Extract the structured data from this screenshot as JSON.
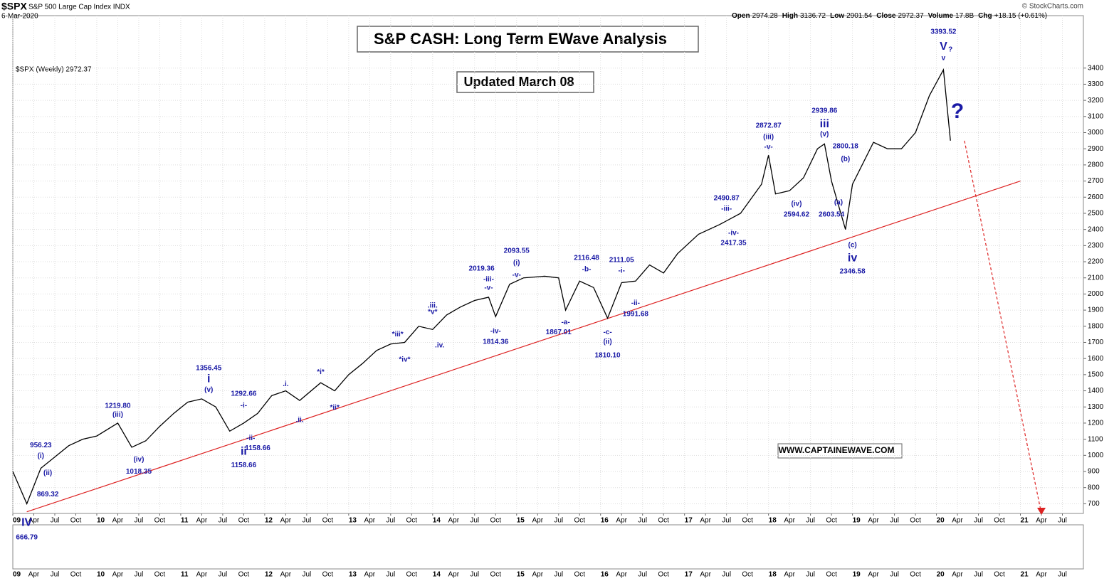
{
  "chart_data": {
    "type": "line",
    "symbol": "$SPX",
    "subtitle": "S&P 500 Large Cap Index INDX",
    "date": "6-Mar-2020",
    "quote": [
      {
        "label": "Open",
        "value": "2974.28"
      },
      {
        "label": "High",
        "value": "3136.72"
      },
      {
        "label": "Low",
        "value": "2901.54"
      },
      {
        "label": "Close",
        "value": "2972.37"
      },
      {
        "label": "Volume",
        "value": "17.8B"
      },
      {
        "label": "Chg",
        "value": "+18.15 (+0.61%)"
      }
    ],
    "credit": "© StockCharts.com",
    "title": "S&P CASH: Long Term EWave Analysis",
    "update_note": "Updated March 08",
    "website": "WWW.CAPTAINEWAVE.COM",
    "x": [
      "2009-01",
      "2009-03",
      "2009-05",
      "2009-07",
      "2009-09",
      "2009-11",
      "2010-01",
      "2010-04",
      "2010-06",
      "2010-08",
      "2010-10",
      "2010-12",
      "2011-02",
      "2011-04",
      "2011-06",
      "2011-08",
      "2011-10",
      "2011-12",
      "2012-02",
      "2012-04",
      "2012-06",
      "2012-09",
      "2012-11",
      "2013-01",
      "2013-03",
      "2013-05",
      "2013-07",
      "2013-09",
      "2013-11",
      "2014-01",
      "2014-03",
      "2014-05",
      "2014-07",
      "2014-09",
      "2014-10",
      "2014-12",
      "2015-02",
      "2015-05",
      "2015-07",
      "2015-08",
      "2015-10",
      "2015-12",
      "2016-02",
      "2016-04",
      "2016-06",
      "2016-08",
      "2016-10",
      "2016-12",
      "2017-03",
      "2017-06",
      "2017-09",
      "2017-12",
      "2018-01",
      "2018-02",
      "2018-04",
      "2018-06",
      "2018-08",
      "2018-09",
      "2018-10",
      "2018-12",
      "2019-01",
      "2019-04",
      "2019-06",
      "2019-08",
      "2019-10",
      "2019-12",
      "2020-02",
      "2020-03"
    ],
    "series": [
      {
        "name": "$SPX (Weekly) 2972.37",
        "color": "#000000",
        "values": [
          900,
          700,
          920,
          990,
          1060,
          1100,
          1120,
          1200,
          1050,
          1090,
          1180,
          1260,
          1330,
          1350,
          1300,
          1150,
          1200,
          1260,
          1370,
          1400,
          1340,
          1450,
          1400,
          1500,
          1570,
          1650,
          1690,
          1700,
          1800,
          1780,
          1870,
          1920,
          1960,
          1980,
          1860,
          2060,
          2100,
          2110,
          2100,
          1900,
          2080,
          2040,
          1850,
          2070,
          2080,
          2180,
          2130,
          2250,
          2370,
          2430,
          2500,
          2680,
          2860,
          2620,
          2640,
          2720,
          2900,
          2930,
          2700,
          2400,
          2680,
          2940,
          2900,
          2900,
          3000,
          3230,
          3390,
          2950
        ]
      }
    ],
    "xlim": [
      "2009-01",
      "2021-10"
    ],
    "xticks": [
      {
        "value": "2009-01",
        "label": "09"
      },
      {
        "value": "2009-04",
        "label": "Apr"
      },
      {
        "value": "2009-07",
        "label": "Jul"
      },
      {
        "value": "2009-10",
        "label": "Oct"
      },
      {
        "value": "2010-01",
        "label": "10"
      },
      {
        "value": "2010-04",
        "label": "Apr"
      },
      {
        "value": "2010-07",
        "label": "Jul"
      },
      {
        "value": "2010-10",
        "label": "Oct"
      },
      {
        "value": "2011-01",
        "label": "11"
      },
      {
        "value": "2011-04",
        "label": "Apr"
      },
      {
        "value": "2011-07",
        "label": "Jul"
      },
      {
        "value": "2011-10",
        "label": "Oct"
      },
      {
        "value": "2012-01",
        "label": "12"
      },
      {
        "value": "2012-04",
        "label": "Apr"
      },
      {
        "value": "2012-07",
        "label": "Jul"
      },
      {
        "value": "2012-10",
        "label": "Oct"
      },
      {
        "value": "2013-01",
        "label": "13"
      },
      {
        "value": "2013-04",
        "label": "Apr"
      },
      {
        "value": "2013-07",
        "label": "Jul"
      },
      {
        "value": "2013-10",
        "label": "Oct"
      },
      {
        "value": "2014-01",
        "label": "14"
      },
      {
        "value": "2014-04",
        "label": "Apr"
      },
      {
        "value": "2014-07",
        "label": "Jul"
      },
      {
        "value": "2014-10",
        "label": "Oct"
      },
      {
        "value": "2015-01",
        "label": "15"
      },
      {
        "value": "2015-04",
        "label": "Apr"
      },
      {
        "value": "2015-07",
        "label": "Jul"
      },
      {
        "value": "2015-10",
        "label": "Oct"
      },
      {
        "value": "2016-01",
        "label": "16"
      },
      {
        "value": "2016-04",
        "label": "Apr"
      },
      {
        "value": "2016-07",
        "label": "Jul"
      },
      {
        "value": "2016-10",
        "label": "Oct"
      },
      {
        "value": "2017-01",
        "label": "17"
      },
      {
        "value": "2017-04",
        "label": "Apr"
      },
      {
        "value": "2017-07",
        "label": "Jul"
      },
      {
        "value": "2017-10",
        "label": "Oct"
      },
      {
        "value": "2018-01",
        "label": "18"
      },
      {
        "value": "2018-04",
        "label": "Apr"
      },
      {
        "value": "2018-07",
        "label": "Jul"
      },
      {
        "value": "2018-10",
        "label": "Oct"
      },
      {
        "value": "2019-01",
        "label": "19"
      },
      {
        "value": "2019-04",
        "label": "Apr"
      },
      {
        "value": "2019-07",
        "label": "Jul"
      },
      {
        "value": "2019-10",
        "label": "Oct"
      },
      {
        "value": "2020-01",
        "label": "20"
      },
      {
        "value": "2020-04",
        "label": "Apr"
      },
      {
        "value": "2020-07",
        "label": "Jul"
      },
      {
        "value": "2020-10",
        "label": "Oct"
      },
      {
        "value": "2021-01",
        "label": "21"
      },
      {
        "value": "2021-04",
        "label": "Apr"
      },
      {
        "value": "2021-07",
        "label": "Jul"
      }
    ],
    "ylim": [
      640,
      3725
    ],
    "yticks": [
      700,
      800,
      900,
      1000,
      1100,
      1200,
      1300,
      1400,
      1500,
      1600,
      1700,
      1800,
      1900,
      2000,
      2100,
      2200,
      2300,
      2400,
      2500,
      2600,
      2700,
      2800,
      2900,
      3000,
      3100,
      3200,
      3300,
      3400
    ],
    "grid": true,
    "lines": [
      {
        "from": [
          "2009-03",
          650
        ],
        "to": [
          "2021-01",
          2700
        ],
        "color": "#dd2222",
        "style": "solid"
      },
      {
        "from": [
          "2020-05",
          2950
        ],
        "to": [
          "2021-04",
          640
        ],
        "color": "#dd2222",
        "style": "dashed"
      }
    ],
    "annotations": [
      {
        "text": "956.23",
        "x": "2009-05",
        "y": 1062
      },
      {
        "text": "(i)",
        "x": "2009-05",
        "y": 996
      },
      {
        "text": "(ii)",
        "x": "2009-06",
        "y": 890
      },
      {
        "text": "869.32",
        "x": "2009-06",
        "y": 758
      },
      {
        "text": "1219.80",
        "x": "2010-04",
        "y": 1305
      },
      {
        "text": "(iii)",
        "x": "2010-04",
        "y": 1252
      },
      {
        "text": "(iv)",
        "x": "2010-07",
        "y": 974
      },
      {
        "text": "1018.35",
        "x": "2010-07",
        "y": 899
      },
      {
        "text": "1356.45",
        "x": "2011-05",
        "y": 1539
      },
      {
        "text": "i",
        "x": "2011-05",
        "y": 1472,
        "size": "big"
      },
      {
        "text": "(v)",
        "x": "2011-05",
        "y": 1406
      },
      {
        "text": "1292.66",
        "x": "2011-10",
        "y": 1380
      },
      {
        "text": "-i-",
        "x": "2011-10",
        "y": 1309
      },
      {
        "text": "-ii-",
        "x": "2011-11",
        "y": 1106
      },
      {
        "text": "1158.66",
        "x": "2011-12",
        "y": 1044
      },
      {
        "text": "ii",
        "x": "2011-10",
        "y": 1022,
        "size": "big"
      },
      {
        "text": "1158.66",
        "x": "2011-10",
        "y": 939
      },
      {
        "text": ".i.",
        "x": "2012-04",
        "y": 1441
      },
      {
        "text": ".ii.",
        "x": "2012-06",
        "y": 1217
      },
      {
        "text": "*i*",
        "x": "2012-09",
        "y": 1516
      },
      {
        "text": "*ii*",
        "x": "2012-11",
        "y": 1296
      },
      {
        "text": "*iii*",
        "x": "2013-08",
        "y": 1750
      },
      {
        "text": "*iv*",
        "x": "2013-09",
        "y": 1592
      },
      {
        "text": ".iii.",
        "x": "2014-01",
        "y": 1927
      },
      {
        "text": "*v*",
        "x": "2014-01",
        "y": 1887
      },
      {
        "text": ".iv.",
        "x": "2014-02",
        "y": 1680
      },
      {
        "text": "2019.36",
        "x": "2014-08",
        "y": 2156
      },
      {
        "text": "-iii-",
        "x": "2014-09",
        "y": 2090
      },
      {
        "text": "-v-",
        "x": "2014-09",
        "y": 2037
      },
      {
        "text": "-iv-",
        "x": "2014-10",
        "y": 1768
      },
      {
        "text": "1814.36",
        "x": "2014-10",
        "y": 1702
      },
      {
        "text": "2093.55",
        "x": "2015-01",
        "y": 2266
      },
      {
        "text": "(i)",
        "x": "2015-01",
        "y": 2191
      },
      {
        "text": "-v-",
        "x": "2015-01",
        "y": 2116
      },
      {
        "text": "2116.48",
        "x": "2015-11",
        "y": 2222
      },
      {
        "text": "-b-",
        "x": "2015-11",
        "y": 2152
      },
      {
        "text": "-a-",
        "x": "2015-08",
        "y": 1825
      },
      {
        "text": "1867.01",
        "x": "2015-07",
        "y": 1763
      },
      {
        "text": "-c-",
        "x": "2016-02",
        "y": 1763
      },
      {
        "text": "(ii)",
        "x": "2016-02",
        "y": 1702
      },
      {
        "text": "1810.10",
        "x": "2016-02",
        "y": 1618
      },
      {
        "text": "2111.05",
        "x": "2016-04",
        "y": 2209
      },
      {
        "text": "-i-",
        "x": "2016-04",
        "y": 2143
      },
      {
        "text": "-ii-",
        "x": "2016-06",
        "y": 1944
      },
      {
        "text": "1991.68",
        "x": "2016-06",
        "y": 1874
      },
      {
        "text": "2490.87",
        "x": "2017-07",
        "y": 2593
      },
      {
        "text": "-iii-",
        "x": "2017-07",
        "y": 2527
      },
      {
        "text": "-iv-",
        "x": "2017-08",
        "y": 2377
      },
      {
        "text": "2417.35",
        "x": "2017-08",
        "y": 2315
      },
      {
        "text": "2872.87",
        "x": "2018-01",
        "y": 3043
      },
      {
        "text": "(iii)",
        "x": "2018-01",
        "y": 2972
      },
      {
        "text": "-v-",
        "x": "2018-01",
        "y": 2910
      },
      {
        "text": "(iv)",
        "x": "2018-05",
        "y": 2557
      },
      {
        "text": "2594.62",
        "x": "2018-05",
        "y": 2491
      },
      {
        "text": "2939.86",
        "x": "2018-09",
        "y": 3135
      },
      {
        "text": "iii",
        "x": "2018-09",
        "y": 3051,
        "size": "big"
      },
      {
        "text": "(v)",
        "x": "2018-09",
        "y": 2990
      },
      {
        "text": "2800.18",
        "x": "2018-12",
        "y": 2915
      },
      {
        "text": "(b)",
        "x": "2018-12",
        "y": 2835
      },
      {
        "text": "(a)",
        "x": "2018-11",
        "y": 2566
      },
      {
        "text": "2603.54",
        "x": "2018-10",
        "y": 2491
      },
      {
        "text": "(c)",
        "x": "2019-01",
        "y": 2302
      },
      {
        "text": "iv",
        "x": "2019-01",
        "y": 2222,
        "size": "big"
      },
      {
        "text": "2346.58",
        "x": "2019-01",
        "y": 2138
      },
      {
        "text": "3393.52",
        "x": "2020-02",
        "y": 3625
      },
      {
        "text": "V",
        "x": "2020-02",
        "y": 3532,
        "size": "big"
      },
      {
        "text": "v",
        "x": "2020-02",
        "y": 3462
      },
      {
        "text": "?",
        "x": "2020-03",
        "y": 3515
      },
      {
        "text": "?",
        "x": "2020-04",
        "y": 3126,
        "size": "huge"
      },
      {
        "text": "IV",
        "x": "2009-03",
        "y": 582,
        "size": "big"
      },
      {
        "text": "666.79",
        "x": "2009-03",
        "y": 490
      }
    ]
  }
}
